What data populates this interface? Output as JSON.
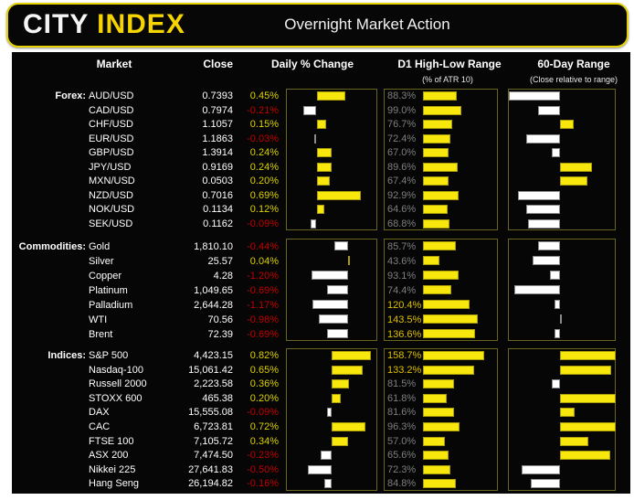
{
  "header": {
    "logo_city": "CITY",
    "logo_index": "INDEX",
    "title": "Overnight Market Action"
  },
  "columns": {
    "market": "Market",
    "close": "Close",
    "daily": "Daily % Change",
    "d1": "D1 High-Low Range",
    "d1_sub": "(% of ATR 10)",
    "r60": "60-Day Range",
    "r60_sub": "(Close relative to range)"
  },
  "colors": {
    "accent_yellow": "#f8e70c",
    "negative_red": "#c00000",
    "bar_white": "#ffffff",
    "muted_gray": "#7f7f7f",
    "over100_gold": "#dfc000",
    "banner_border": "#e6d200"
  },
  "chart_data": {
    "type": "table",
    "title": "Overnight Market Action",
    "column_headers": [
      "Market",
      "Close",
      "Daily % Change",
      "D1 High-Low Range (% of ATR 10)",
      "60-Day Range (Close relative to range)"
    ],
    "legend": {
      "daily_bar": "yellow = positive day, white = negative day",
      "range_bar": "bar drawn from mid-point of 60-day range to close; yellow = upper half, white = lower half"
    },
    "groups": [
      {
        "label": "Forex:",
        "rows": [
          {
            "market": "AUD/USD",
            "close": "0.7393",
            "daily_pct": 0.45,
            "daily_label": "0.45%",
            "d1_atr_pct": 88.3,
            "d1_label": "88.3%",
            "range_pos_pct": 1
          },
          {
            "market": "CAD/USD",
            "close": "0.7974",
            "daily_pct": -0.21,
            "daily_label": "-0.21%",
            "d1_atr_pct": 99.0,
            "d1_label": "99.0%",
            "range_pos_pct": 28
          },
          {
            "market": "CHF/USD",
            "close": "1.1057",
            "daily_pct": 0.15,
            "daily_label": "0.15%",
            "d1_atr_pct": 76.7,
            "d1_label": "76.7%",
            "range_pos_pct": 61
          },
          {
            "market": "EUR/USD",
            "close": "1.1863",
            "daily_pct": -0.03,
            "daily_label": "-0.03%",
            "d1_atr_pct": 72.4,
            "d1_label": "72.4%",
            "range_pos_pct": 17
          },
          {
            "market": "GBP/USD",
            "close": "1.3914",
            "daily_pct": 0.24,
            "daily_label": "0.24%",
            "d1_atr_pct": 67.0,
            "d1_label": "67.0%",
            "range_pos_pct": 41
          },
          {
            "market": "JPY/USD",
            "close": "0.9169",
            "daily_pct": 0.24,
            "daily_label": "0.24%",
            "d1_atr_pct": 89.6,
            "d1_label": "89.6%",
            "range_pos_pct": 78
          },
          {
            "market": "MXN/USD",
            "close": "0.0503",
            "daily_pct": 0.2,
            "daily_label": "0.20%",
            "d1_atr_pct": 67.4,
            "d1_label": "67.4%",
            "range_pos_pct": 74
          },
          {
            "market": "NZD/USD",
            "close": "0.7016",
            "daily_pct": 0.69,
            "daily_label": "0.69%",
            "d1_atr_pct": 92.9,
            "d1_label": "92.9%",
            "range_pos_pct": 9
          },
          {
            "market": "NOK/USD",
            "close": "0.1134",
            "daily_pct": 0.12,
            "daily_label": "0.12%",
            "d1_atr_pct": 64.6,
            "d1_label": "64.6%",
            "range_pos_pct": 17
          },
          {
            "market": "SEK/USD",
            "close": "0.1162",
            "daily_pct": -0.09,
            "daily_label": "-0.09%",
            "d1_atr_pct": 68.8,
            "d1_label": "68.8%",
            "range_pos_pct": 19
          }
        ]
      },
      {
        "label": "Commodities:",
        "rows": [
          {
            "market": "Gold",
            "close": "1,810.10",
            "daily_pct": -0.44,
            "daily_label": "-0.44%",
            "d1_atr_pct": 85.7,
            "d1_label": "85.7%",
            "range_pos_pct": 28
          },
          {
            "market": "Silver",
            "close": "25.57",
            "daily_pct": 0.04,
            "daily_label": "0.04%",
            "d1_atr_pct": 43.6,
            "d1_label": "43.6%",
            "range_pos_pct": 23
          },
          {
            "market": "Copper",
            "close": "4.28",
            "daily_pct": -1.2,
            "daily_label": "-1.20%",
            "d1_atr_pct": 93.1,
            "d1_label": "93.1%",
            "range_pos_pct": 39
          },
          {
            "market": "Platinum",
            "close": "1,049.65",
            "daily_pct": -0.69,
            "daily_label": "-0.69%",
            "d1_atr_pct": 74.4,
            "d1_label": "74.4%",
            "range_pos_pct": 6
          },
          {
            "market": "Palladium",
            "close": "2,644.28",
            "daily_pct": -1.17,
            "daily_label": "-1.17%",
            "d1_atr_pct": 120.4,
            "d1_label": "120.4%",
            "range_pos_pct": 43
          },
          {
            "market": "WTI",
            "close": "70.56",
            "daily_pct": -0.98,
            "daily_label": "-0.98%",
            "d1_atr_pct": 143.5,
            "d1_label": "143.5%",
            "range_pos_pct": 48
          },
          {
            "market": "Brent",
            "close": "72.39",
            "daily_pct": -0.69,
            "daily_label": "-0.69%",
            "d1_atr_pct": 136.6,
            "d1_label": "136.6%",
            "range_pos_pct": 43
          }
        ]
      },
      {
        "label": "Indices:",
        "rows": [
          {
            "market": "S&P 500",
            "close": "4,423.15",
            "daily_pct": 0.82,
            "daily_label": "0.82%",
            "d1_atr_pct": 158.7,
            "d1_label": "158.7%",
            "range_pos_pct": 100
          },
          {
            "market": "Nasdaq-100",
            "close": "15,061.42",
            "daily_pct": 0.65,
            "daily_label": "0.65%",
            "d1_atr_pct": 133.2,
            "d1_label": "133.2%",
            "range_pos_pct": 96
          },
          {
            "market": "Russell 2000",
            "close": "2,223.58",
            "daily_pct": 0.36,
            "daily_label": "0.36%",
            "d1_atr_pct": 81.5,
            "d1_label": "81.5%",
            "range_pos_pct": 41
          },
          {
            "market": "STOXX 600",
            "close": "465.38",
            "daily_pct": 0.2,
            "daily_label": "0.20%",
            "d1_atr_pct": 61.8,
            "d1_label": "61.8%",
            "range_pos_pct": 100
          },
          {
            "market": "DAX",
            "close": "15,555.08",
            "daily_pct": -0.09,
            "daily_label": "-0.09%",
            "d1_atr_pct": 81.6,
            "d1_label": "81.6%",
            "range_pos_pct": 62
          },
          {
            "market": "CAC",
            "close": "6,723.81",
            "daily_pct": 0.72,
            "daily_label": "0.72%",
            "d1_atr_pct": 96.3,
            "d1_label": "96.3%",
            "range_pos_pct": 100
          },
          {
            "market": "FTSE 100",
            "close": "7,105.72",
            "daily_pct": 0.34,
            "daily_label": "0.34%",
            "d1_atr_pct": 57.0,
            "d1_label": "57.0%",
            "range_pos_pct": 75
          },
          {
            "market": "ASX 200",
            "close": "7,474.50",
            "daily_pct": -0.23,
            "daily_label": "-0.23%",
            "d1_atr_pct": 65.6,
            "d1_label": "65.6%",
            "range_pos_pct": 95
          },
          {
            "market": "Nikkei 225",
            "close": "27,641.83",
            "daily_pct": -0.5,
            "daily_label": "-0.50%",
            "d1_atr_pct": 72.3,
            "d1_label": "72.3%",
            "range_pos_pct": 13
          },
          {
            "market": "Hang Seng",
            "close": "26,194.82",
            "daily_pct": -0.16,
            "daily_label": "-0.16%",
            "d1_atr_pct": 84.8,
            "d1_label": "84.8%",
            "range_pos_pct": 21
          }
        ]
      }
    ]
  }
}
